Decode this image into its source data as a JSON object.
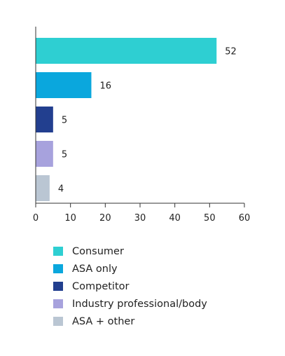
{
  "chart_data": {
    "type": "bar",
    "orientation": "horizontal",
    "categories": [
      "Consumer",
      "ASA only",
      "Competitor",
      "Industry professional/body",
      "ASA + other"
    ],
    "values": [
      52,
      16,
      5,
      5,
      4
    ],
    "data_labels": [
      "52",
      "16",
      "5",
      "5",
      "4"
    ],
    "colors": [
      "#2ecfd2",
      "#0aa7dd",
      "#223f8f",
      "#a7a2dd",
      "#bac6d3"
    ],
    "xlim": [
      0,
      60
    ],
    "xticks": [
      0,
      10,
      20,
      30,
      40,
      50,
      60
    ],
    "xtick_labels": [
      "0",
      "10",
      "20",
      "30",
      "40",
      "50",
      "60"
    ],
    "grid": false,
    "legend_position": "bottom",
    "title": "",
    "xlabel": "",
    "ylabel": ""
  }
}
